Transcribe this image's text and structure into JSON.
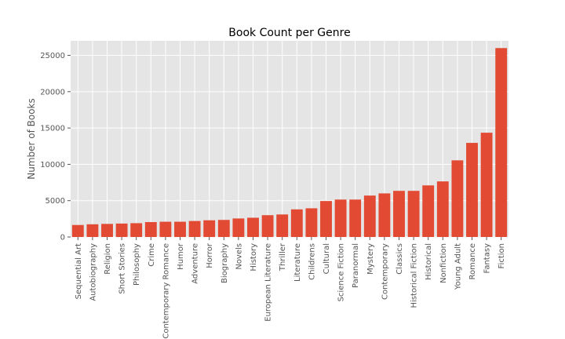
{
  "chart_data": {
    "type": "bar",
    "title": "Book Count per Genre",
    "xlabel": "",
    "ylabel": "Number of Books",
    "ylim": [
      0,
      27000
    ],
    "yticks": [
      0,
      5000,
      10000,
      15000,
      20000,
      25000
    ],
    "grid": true,
    "legend": "none",
    "colors": {
      "bar": "#E24A33",
      "background": "#E5E5E5",
      "grid": "#FFFFFF"
    },
    "categories": [
      "Sequential Art",
      "Autobiography",
      "Religion",
      "Short Stories",
      "Philosophy",
      "Crime",
      "Contemporary Romance",
      "Humor",
      "Adventure",
      "Horror",
      "Biography",
      "Novels",
      "History",
      "European Literature",
      "Thriller",
      "Literature",
      "Childrens",
      "Cultural",
      "Science Fiction",
      "Paranormal",
      "Mystery",
      "Contemporary",
      "Classics",
      "Historical Fiction",
      "Historical",
      "Nonfiction",
      "Young Adult",
      "Romance",
      "Fantasy",
      "Fiction"
    ],
    "values": [
      1650,
      1750,
      1800,
      1850,
      1900,
      2050,
      2100,
      2100,
      2200,
      2300,
      2350,
      2550,
      2650,
      3000,
      3100,
      3800,
      3950,
      4950,
      5150,
      5150,
      5700,
      6000,
      6350,
      6350,
      7100,
      7650,
      10550,
      12950,
      14350,
      26000
    ]
  }
}
